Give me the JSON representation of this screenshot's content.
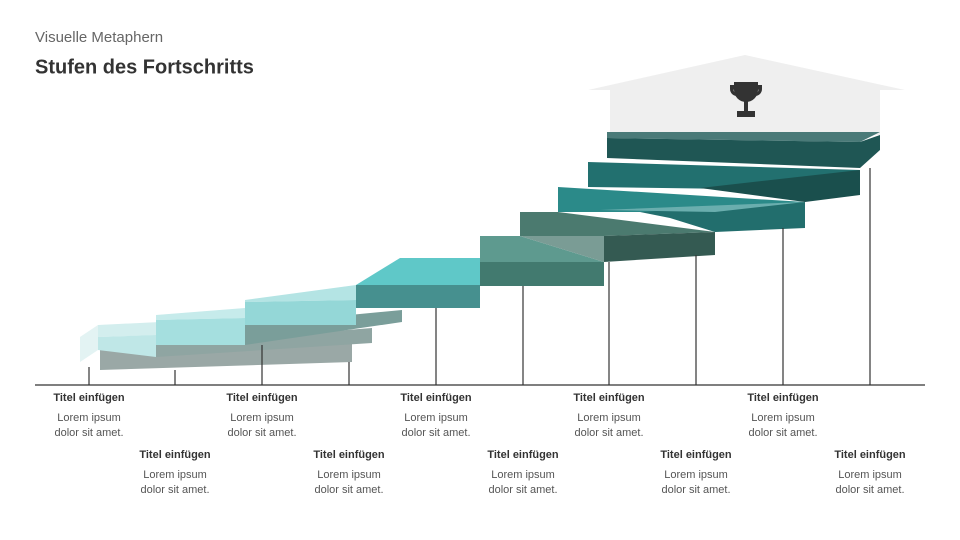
{
  "header": {
    "subtitle": "Visuelle Metaphern",
    "title": "Stufen des Fortschritts"
  },
  "items": [
    {
      "title": "Titel einfügen",
      "text": [
        "Lorem ipsum",
        "dolor sit amet."
      ]
    },
    {
      "title": "Titel einfügen",
      "text": [
        "Lorem ipsum",
        "dolor sit amet."
      ]
    },
    {
      "title": "Titel einfügen",
      "text": [
        "Lorem ipsum",
        "dolor sit amet."
      ]
    },
    {
      "title": "Titel einfügen",
      "text": [
        "Lorem ipsum",
        "dolor sit amet."
      ]
    },
    {
      "title": "Titel einfügen",
      "text": [
        "Lorem ipsum",
        "dolor sit amet."
      ]
    },
    {
      "title": "Titel einfügen",
      "text": [
        "Lorem ipsum",
        "dolor sit amet."
      ]
    },
    {
      "title": "Titel einfügen",
      "text": [
        "Lorem ipsum",
        "dolor sit amet."
      ]
    },
    {
      "title": "Titel einfügen",
      "text": [
        "Lorem ipsum",
        "dolor sit amet."
      ]
    },
    {
      "title": "Titel einfügen",
      "text": [
        "Lorem ipsum",
        "dolor sit amet."
      ]
    },
    {
      "title": "Titel einfügen",
      "text": [
        "Lorem ipsum",
        "dolor sit amet."
      ]
    }
  ]
}
